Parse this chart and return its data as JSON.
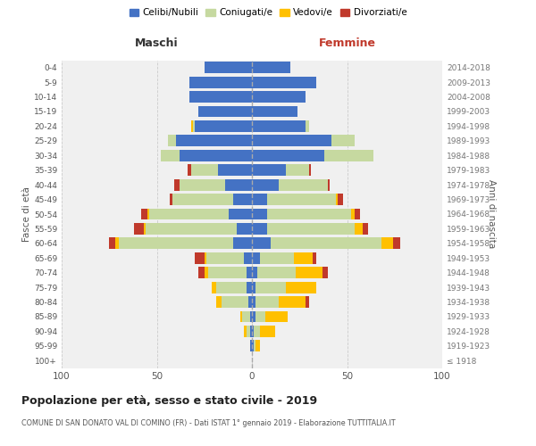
{
  "age_groups": [
    "100+",
    "95-99",
    "90-94",
    "85-89",
    "80-84",
    "75-79",
    "70-74",
    "65-69",
    "60-64",
    "55-59",
    "50-54",
    "45-49",
    "40-44",
    "35-39",
    "30-34",
    "25-29",
    "20-24",
    "15-19",
    "10-14",
    "5-9",
    "0-4"
  ],
  "birth_years": [
    "≤ 1918",
    "1919-1923",
    "1924-1928",
    "1929-1933",
    "1934-1938",
    "1939-1943",
    "1944-1948",
    "1949-1953",
    "1954-1958",
    "1959-1963",
    "1964-1968",
    "1969-1973",
    "1974-1978",
    "1979-1983",
    "1984-1988",
    "1989-1993",
    "1994-1998",
    "1999-2003",
    "2004-2008",
    "2009-2013",
    "2014-2018"
  ],
  "maschi": {
    "celibi": [
      0,
      1,
      1,
      1,
      2,
      3,
      3,
      4,
      10,
      8,
      12,
      10,
      14,
      18,
      38,
      40,
      30,
      28,
      33,
      33,
      25
    ],
    "coniugati": [
      0,
      0,
      2,
      4,
      14,
      16,
      20,
      20,
      60,
      48,
      42,
      32,
      24,
      14,
      10,
      4,
      1,
      0,
      0,
      0,
      0
    ],
    "vedovi": [
      0,
      0,
      1,
      1,
      3,
      2,
      2,
      1,
      2,
      1,
      1,
      0,
      0,
      0,
      0,
      0,
      1,
      0,
      0,
      0,
      0
    ],
    "divorziati": [
      0,
      0,
      0,
      0,
      0,
      0,
      3,
      5,
      3,
      5,
      3,
      1,
      3,
      2,
      0,
      0,
      0,
      0,
      0,
      0,
      0
    ]
  },
  "femmine": {
    "nubili": [
      0,
      1,
      1,
      2,
      2,
      2,
      3,
      4,
      10,
      8,
      8,
      8,
      14,
      18,
      38,
      42,
      28,
      24,
      28,
      34,
      20
    ],
    "coniugate": [
      0,
      1,
      3,
      5,
      12,
      16,
      20,
      18,
      58,
      46,
      44,
      36,
      26,
      12,
      26,
      12,
      2,
      0,
      0,
      0,
      0
    ],
    "vedove": [
      0,
      2,
      8,
      12,
      14,
      16,
      14,
      10,
      6,
      4,
      2,
      1,
      0,
      0,
      0,
      0,
      0,
      0,
      0,
      0,
      0
    ],
    "divorziate": [
      0,
      0,
      0,
      0,
      2,
      0,
      3,
      2,
      4,
      3,
      3,
      3,
      1,
      1,
      0,
      0,
      0,
      0,
      0,
      0,
      0
    ]
  },
  "colors": {
    "celibi_nubili": "#4472c4",
    "coniugati": "#c6d9a0",
    "vedovi": "#ffc000",
    "divorziati": "#c0392b"
  },
  "xlim": 100,
  "title": "Popolazione per età, sesso e stato civile - 2019",
  "subtitle": "COMUNE DI SAN DONATO VAL DI COMINO (FR) - Dati ISTAT 1° gennaio 2019 - Elaborazione TUTTITALIA.IT",
  "ylabel_left": "Fasce di età",
  "ylabel_right": "Anni di nascita",
  "xlabel_left": "Maschi",
  "xlabel_right": "Femmine",
  "bg_color": "#f0f0f0",
  "grid_color": "#cccccc"
}
